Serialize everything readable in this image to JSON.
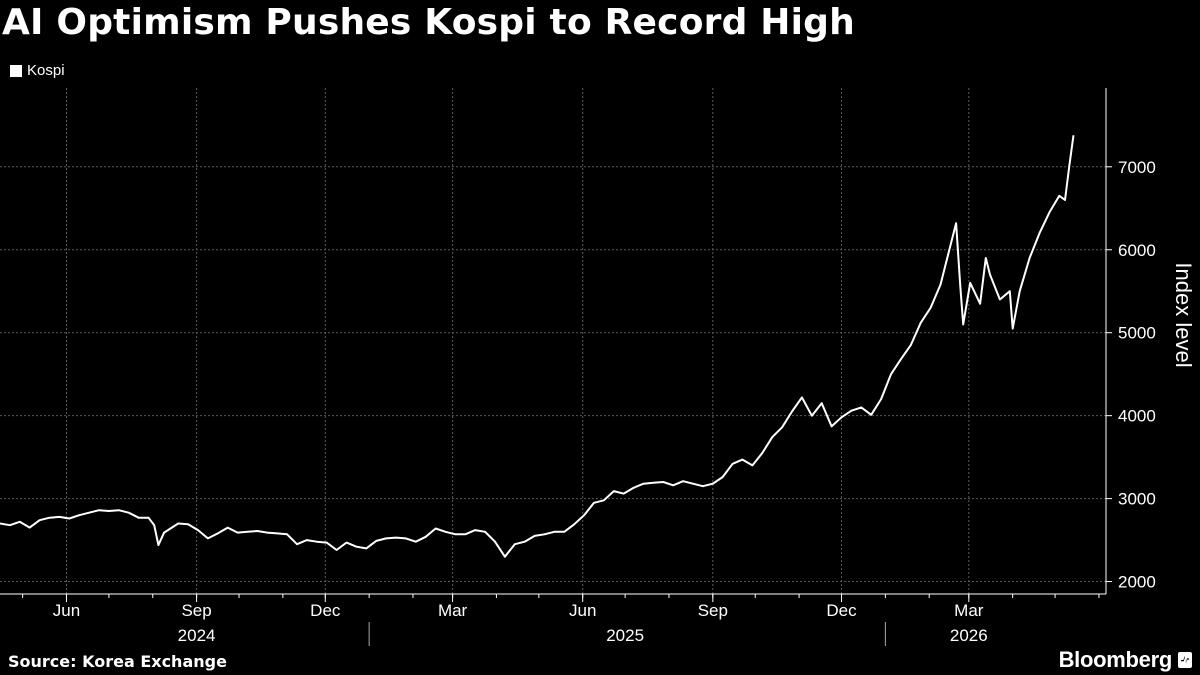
{
  "chart_data": {
    "type": "line",
    "title": "AI Optimism Pushes Kospi to Record High",
    "ylabel": "Index level",
    "xlabel": "",
    "legend": "top-left",
    "grid": true,
    "series": [
      {
        "name": "Kospi",
        "color": "#ffffff",
        "points": [
          [
            "2024-04-15",
            2700
          ],
          [
            "2024-04-22",
            2680
          ],
          [
            "2024-04-29",
            2720
          ],
          [
            "2024-05-06",
            2650
          ],
          [
            "2024-05-13",
            2740
          ],
          [
            "2024-05-20",
            2770
          ],
          [
            "2024-05-27",
            2780
          ],
          [
            "2024-06-03",
            2760
          ],
          [
            "2024-06-10",
            2800
          ],
          [
            "2024-06-17",
            2830
          ],
          [
            "2024-06-24",
            2860
          ],
          [
            "2024-07-01",
            2850
          ],
          [
            "2024-07-08",
            2860
          ],
          [
            "2024-07-15",
            2830
          ],
          [
            "2024-07-22",
            2770
          ],
          [
            "2024-07-29",
            2770
          ],
          [
            "2024-08-02",
            2680
          ],
          [
            "2024-08-05",
            2440
          ],
          [
            "2024-08-09",
            2590
          ],
          [
            "2024-08-19",
            2700
          ],
          [
            "2024-08-26",
            2690
          ],
          [
            "2024-09-02",
            2620
          ],
          [
            "2024-09-09",
            2520
          ],
          [
            "2024-09-16",
            2580
          ],
          [
            "2024-09-23",
            2650
          ],
          [
            "2024-09-30",
            2590
          ],
          [
            "2024-10-07",
            2600
          ],
          [
            "2024-10-14",
            2610
          ],
          [
            "2024-10-21",
            2590
          ],
          [
            "2024-10-28",
            2580
          ],
          [
            "2024-11-04",
            2570
          ],
          [
            "2024-11-11",
            2450
          ],
          [
            "2024-11-18",
            2500
          ],
          [
            "2024-11-25",
            2480
          ],
          [
            "2024-12-02",
            2470
          ],
          [
            "2024-12-09",
            2380
          ],
          [
            "2024-12-16",
            2470
          ],
          [
            "2024-12-23",
            2420
          ],
          [
            "2024-12-30",
            2400
          ],
          [
            "2025-01-06",
            2490
          ],
          [
            "2025-01-13",
            2520
          ],
          [
            "2025-01-20",
            2530
          ],
          [
            "2025-01-27",
            2520
          ],
          [
            "2025-02-03",
            2480
          ],
          [
            "2025-02-10",
            2540
          ],
          [
            "2025-02-17",
            2640
          ],
          [
            "2025-02-24",
            2600
          ],
          [
            "2025-03-03",
            2570
          ],
          [
            "2025-03-10",
            2570
          ],
          [
            "2025-03-17",
            2620
          ],
          [
            "2025-03-24",
            2600
          ],
          [
            "2025-03-31",
            2480
          ],
          [
            "2025-04-07",
            2300
          ],
          [
            "2025-04-14",
            2450
          ],
          [
            "2025-04-21",
            2480
          ],
          [
            "2025-04-28",
            2550
          ],
          [
            "2025-05-05",
            2570
          ],
          [
            "2025-05-12",
            2600
          ],
          [
            "2025-05-19",
            2600
          ],
          [
            "2025-05-26",
            2690
          ],
          [
            "2025-06-02",
            2800
          ],
          [
            "2025-06-09",
            2950
          ],
          [
            "2025-06-16",
            2980
          ],
          [
            "2025-06-23",
            3090
          ],
          [
            "2025-06-30",
            3060
          ],
          [
            "2025-07-07",
            3130
          ],
          [
            "2025-07-14",
            3180
          ],
          [
            "2025-07-21",
            3190
          ],
          [
            "2025-07-28",
            3200
          ],
          [
            "2025-08-04",
            3160
          ],
          [
            "2025-08-11",
            3210
          ],
          [
            "2025-08-18",
            3180
          ],
          [
            "2025-08-25",
            3150
          ],
          [
            "2025-09-01",
            3180
          ],
          [
            "2025-09-08",
            3260
          ],
          [
            "2025-09-15",
            3420
          ],
          [
            "2025-09-22",
            3470
          ],
          [
            "2025-09-29",
            3400
          ],
          [
            "2025-10-06",
            3550
          ],
          [
            "2025-10-13",
            3740
          ],
          [
            "2025-10-20",
            3860
          ],
          [
            "2025-10-27",
            4050
          ],
          [
            "2025-11-03",
            4220
          ],
          [
            "2025-11-10",
            4000
          ],
          [
            "2025-11-17",
            4150
          ],
          [
            "2025-11-24",
            3870
          ],
          [
            "2025-12-01",
            3980
          ],
          [
            "2025-12-08",
            4060
          ],
          [
            "2025-12-15",
            4100
          ],
          [
            "2025-12-22",
            4010
          ],
          [
            "2025-12-29",
            4200
          ],
          [
            "2026-01-05",
            4500
          ],
          [
            "2026-01-12",
            4680
          ],
          [
            "2026-01-19",
            4850
          ],
          [
            "2026-01-26",
            5120
          ],
          [
            "2026-02-02",
            5300
          ],
          [
            "2026-02-09",
            5580
          ],
          [
            "2026-02-16",
            6050
          ],
          [
            "2026-02-20",
            6320
          ],
          [
            "2026-02-23",
            5560
          ],
          [
            "2026-02-25",
            5100
          ],
          [
            "2026-03-02",
            5600
          ],
          [
            "2026-03-09",
            5350
          ],
          [
            "2026-03-13",
            5900
          ],
          [
            "2026-03-16",
            5700
          ],
          [
            "2026-03-23",
            5400
          ],
          [
            "2026-03-30",
            5500
          ],
          [
            "2026-04-01",
            5050
          ],
          [
            "2026-04-06",
            5500
          ],
          [
            "2026-04-13",
            5900
          ],
          [
            "2026-04-20",
            6200
          ],
          [
            "2026-04-27",
            6450
          ],
          [
            "2026-05-04",
            6650
          ],
          [
            "2026-05-08",
            6600
          ],
          [
            "2026-05-11",
            7000
          ],
          [
            "2026-05-14",
            7380
          ]
        ]
      }
    ],
    "y_ticks": [
      "2000",
      "3000",
      "4000",
      "5000",
      "6000",
      "7000"
    ],
    "ylim": [
      1850,
      7950
    ],
    "xlim": [
      "2024-04-15",
      "2026-06-06"
    ],
    "x_month_ticks": [
      {
        "label": "Jun",
        "date": "2024-06-01"
      },
      {
        "label": "Sep",
        "date": "2024-09-01"
      },
      {
        "label": "Dec",
        "date": "2024-12-01"
      },
      {
        "label": "Mar",
        "date": "2025-03-01"
      },
      {
        "label": "Jun",
        "date": "2025-06-01"
      },
      {
        "label": "Sep",
        "date": "2025-09-01"
      },
      {
        "label": "Dec",
        "date": "2025-12-01"
      },
      {
        "label": "Mar",
        "date": "2026-03-01"
      }
    ],
    "x_year_labels": [
      {
        "label": "2024",
        "date": "2024-09-01"
      },
      {
        "label": "2025",
        "date": "2025-07-01"
      },
      {
        "label": "2026",
        "date": "2026-03-01"
      }
    ],
    "x_year_dividers": [
      "2025-01-01",
      "2026-01-01"
    ]
  },
  "footer": {
    "source": "Source: Korea Exchange",
    "brand": "Bloomberg"
  }
}
